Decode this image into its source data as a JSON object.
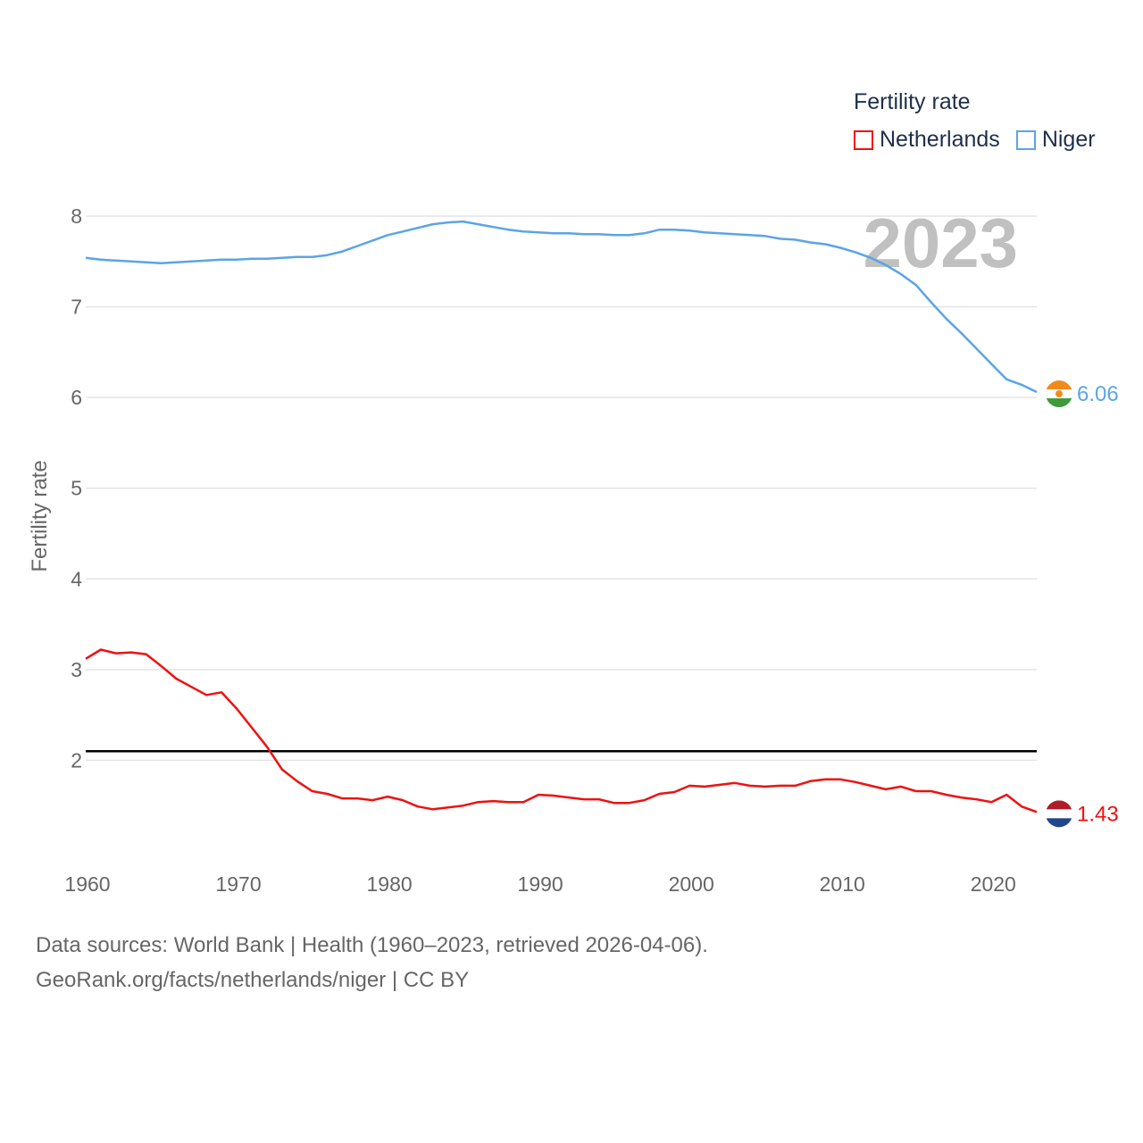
{
  "legend": {
    "title": "Fertility rate",
    "items": [
      {
        "label": "Netherlands",
        "color": "#ee1111"
      },
      {
        "label": "Niger",
        "color": "#5ba4e6"
      }
    ]
  },
  "year_label": "2023",
  "footer": {
    "line1": "Data sources: World Bank | Health (1960–2023, retrieved 2026-04-06).",
    "line2": "GeoRank.org/facts/netherlands/niger | CC BY"
  },
  "chart_data": {
    "type": "line",
    "title": "Fertility rate",
    "xlabel": "",
    "ylabel": "Fertility rate",
    "xlim": [
      1960,
      2023
    ],
    "ylim": [
      1,
      8
    ],
    "x_ticks": [
      1960,
      1970,
      1980,
      1990,
      2000,
      2010,
      2020
    ],
    "y_ticks": [
      2,
      3,
      4,
      5,
      6,
      7,
      8
    ],
    "grid": true,
    "reference_line": {
      "y": 2.1,
      "color": "#000000"
    },
    "x": [
      1960,
      1961,
      1962,
      1963,
      1964,
      1965,
      1966,
      1967,
      1968,
      1969,
      1970,
      1971,
      1972,
      1973,
      1974,
      1975,
      1976,
      1977,
      1978,
      1979,
      1980,
      1981,
      1982,
      1983,
      1984,
      1985,
      1986,
      1987,
      1988,
      1989,
      1990,
      1991,
      1992,
      1993,
      1994,
      1995,
      1996,
      1997,
      1998,
      1999,
      2000,
      2001,
      2002,
      2003,
      2004,
      2005,
      2006,
      2007,
      2008,
      2009,
      2010,
      2011,
      2012,
      2013,
      2014,
      2015,
      2016,
      2017,
      2018,
      2019,
      2020,
      2021,
      2022,
      2023
    ],
    "series": [
      {
        "name": "Netherlands",
        "color": "#ee1111",
        "end_label": "1.43",
        "flag": "netherlands",
        "values": [
          3.12,
          3.22,
          3.18,
          3.19,
          3.17,
          3.04,
          2.9,
          2.81,
          2.72,
          2.75,
          2.57,
          2.36,
          2.15,
          1.9,
          1.77,
          1.66,
          1.63,
          1.58,
          1.58,
          1.56,
          1.6,
          1.56,
          1.49,
          1.46,
          1.48,
          1.5,
          1.54,
          1.55,
          1.54,
          1.54,
          1.62,
          1.61,
          1.59,
          1.57,
          1.57,
          1.53,
          1.53,
          1.56,
          1.63,
          1.65,
          1.72,
          1.71,
          1.73,
          1.75,
          1.72,
          1.71,
          1.72,
          1.72,
          1.77,
          1.79,
          1.79,
          1.76,
          1.72,
          1.68,
          1.71,
          1.66,
          1.66,
          1.62,
          1.59,
          1.57,
          1.54,
          1.62,
          1.49,
          1.43
        ]
      },
      {
        "name": "Niger",
        "color": "#5ba4e6",
        "end_label": "6.06",
        "flag": "niger",
        "values": [
          7.54,
          7.52,
          7.51,
          7.5,
          7.49,
          7.48,
          7.49,
          7.5,
          7.51,
          7.52,
          7.52,
          7.53,
          7.53,
          7.54,
          7.55,
          7.55,
          7.57,
          7.61,
          7.67,
          7.73,
          7.79,
          7.83,
          7.87,
          7.91,
          7.93,
          7.94,
          7.91,
          7.88,
          7.85,
          7.83,
          7.82,
          7.81,
          7.81,
          7.8,
          7.8,
          7.79,
          7.79,
          7.81,
          7.85,
          7.85,
          7.84,
          7.82,
          7.81,
          7.8,
          7.79,
          7.78,
          7.75,
          7.74,
          7.71,
          7.69,
          7.65,
          7.6,
          7.54,
          7.46,
          7.36,
          7.24,
          7.05,
          6.87,
          6.71,
          6.54,
          6.37,
          6.2,
          6.14,
          6.06
        ]
      }
    ]
  }
}
